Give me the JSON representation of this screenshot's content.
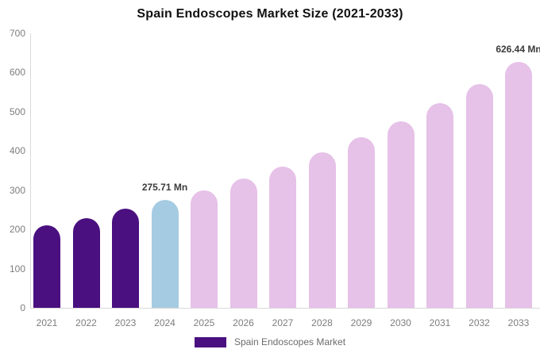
{
  "title": "Spain Endoscopes Market Size (2021-2033)",
  "legend": {
    "label": "Spain Endoscopes Market",
    "swatch_color": "#4a1080"
  },
  "colors": {
    "historical_bar": "#4a1080",
    "current_year_bar": "#a5cbe2",
    "forecast_bar": "#e6c1e8",
    "axis_line": "#d9d9d9",
    "tick_text": "#7d7d7d",
    "annotation_text": "#3b3b3b"
  },
  "chart_data": {
    "type": "bar",
    "title": "Spain Endoscopes Market Size (2021-2033)",
    "categories": [
      "2021",
      "2022",
      "2023",
      "2024",
      "2025",
      "2026",
      "2027",
      "2028",
      "2029",
      "2030",
      "2031",
      "2032",
      "2033"
    ],
    "values": [
      210,
      229,
      252,
      275.71,
      300,
      330,
      361,
      396,
      434,
      475,
      521,
      571,
      626.44
    ],
    "unit": "Mn",
    "bar_colors": [
      "#4a1080",
      "#4a1080",
      "#4a1080",
      "#a5cbe2",
      "#e6c1e8",
      "#e6c1e8",
      "#e6c1e8",
      "#e6c1e8",
      "#e6c1e8",
      "#e6c1e8",
      "#e6c1e8",
      "#e6c1e8",
      "#e6c1e8"
    ],
    "annotations": [
      {
        "index": 3,
        "text": "275.71 Mn"
      },
      {
        "index": 12,
        "text": "626.44 Mn"
      }
    ],
    "xlabel": "",
    "ylabel": "",
    "ylim": [
      0,
      700
    ],
    "yticks": [
      0,
      100,
      200,
      300,
      400,
      500,
      600,
      700
    ],
    "grid": false,
    "legend_position": "bottom",
    "legend_entries": [
      "Spain Endoscopes Market"
    ]
  }
}
